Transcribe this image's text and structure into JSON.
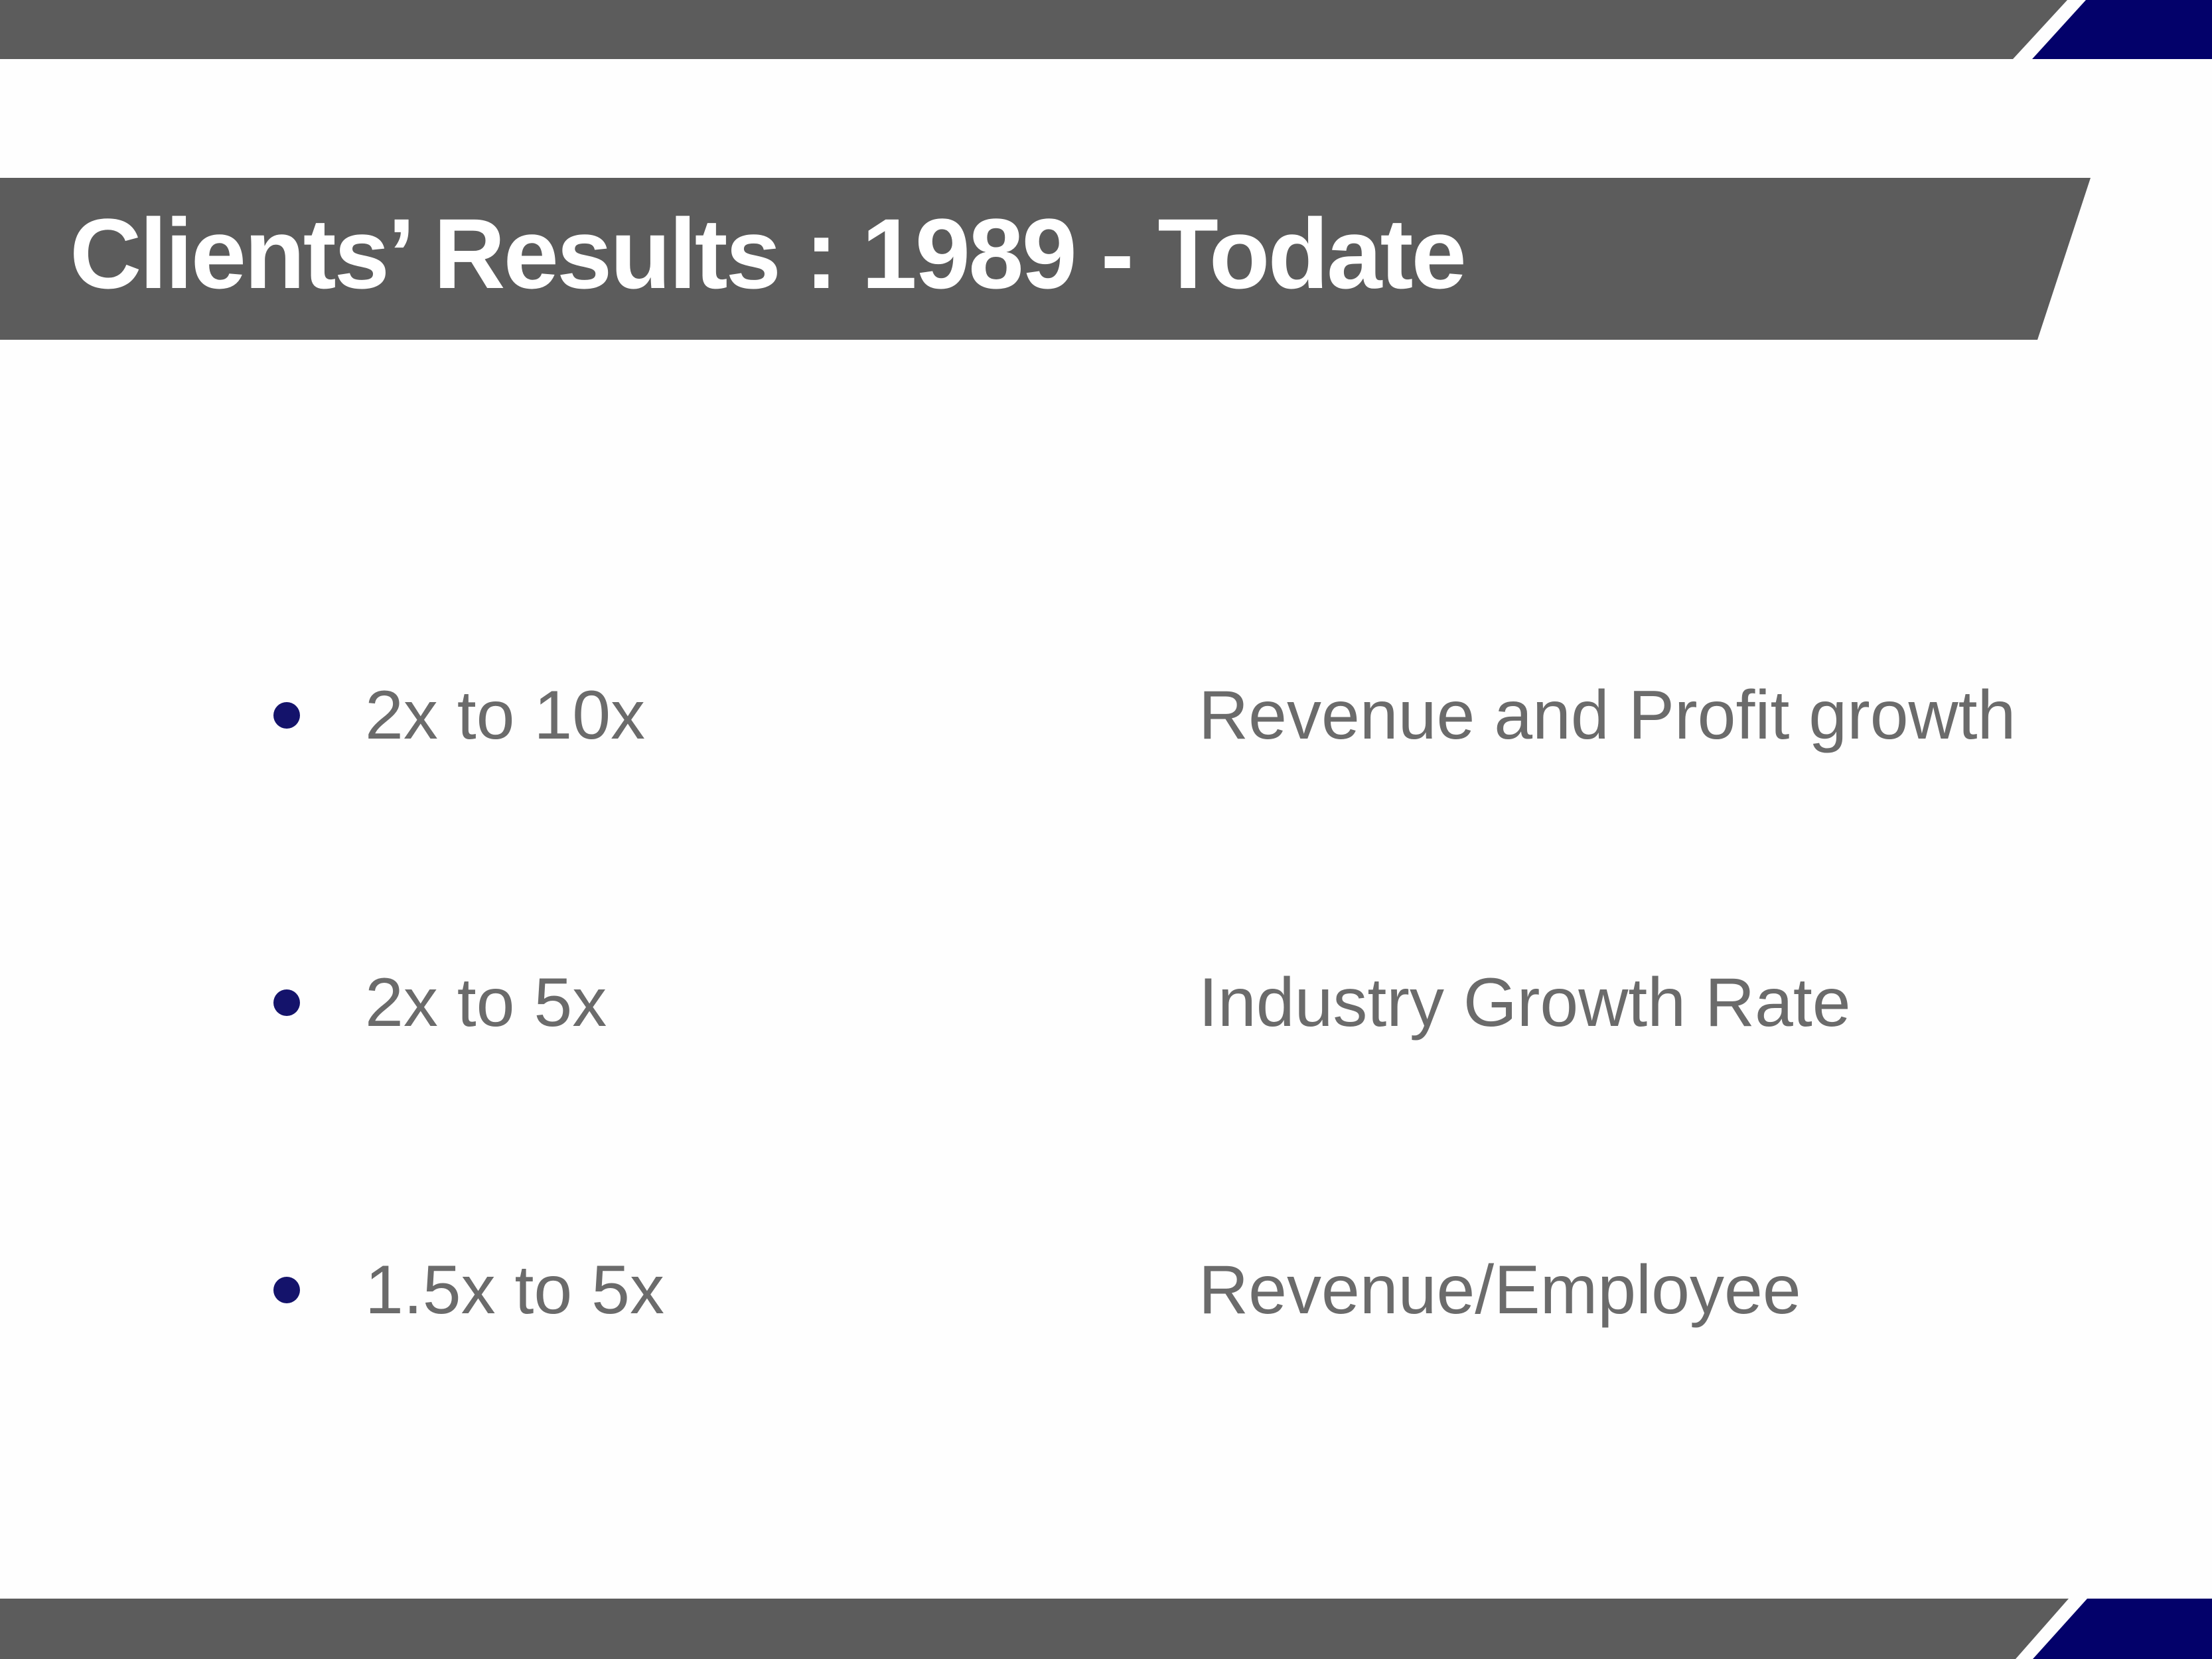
{
  "slide": {
    "title": "Clients’ Results : 1989 - Todate",
    "rows": [
      {
        "metric": "2x to 10x",
        "label": "Revenue and Profit growth"
      },
      {
        "metric": "2x to 5x",
        "label": "Industry Growth Rate"
      },
      {
        "metric": "1.5x to 5x",
        "label": "Revenue/Employee"
      }
    ],
    "colors": {
      "bar_gray": "#5C5C5C",
      "corner_navy": "#03016A",
      "bullet_navy": "#14136B",
      "title_text": "#FFFFFF",
      "body_text": "#6B6B6B",
      "background": "#FEFEFE"
    }
  }
}
